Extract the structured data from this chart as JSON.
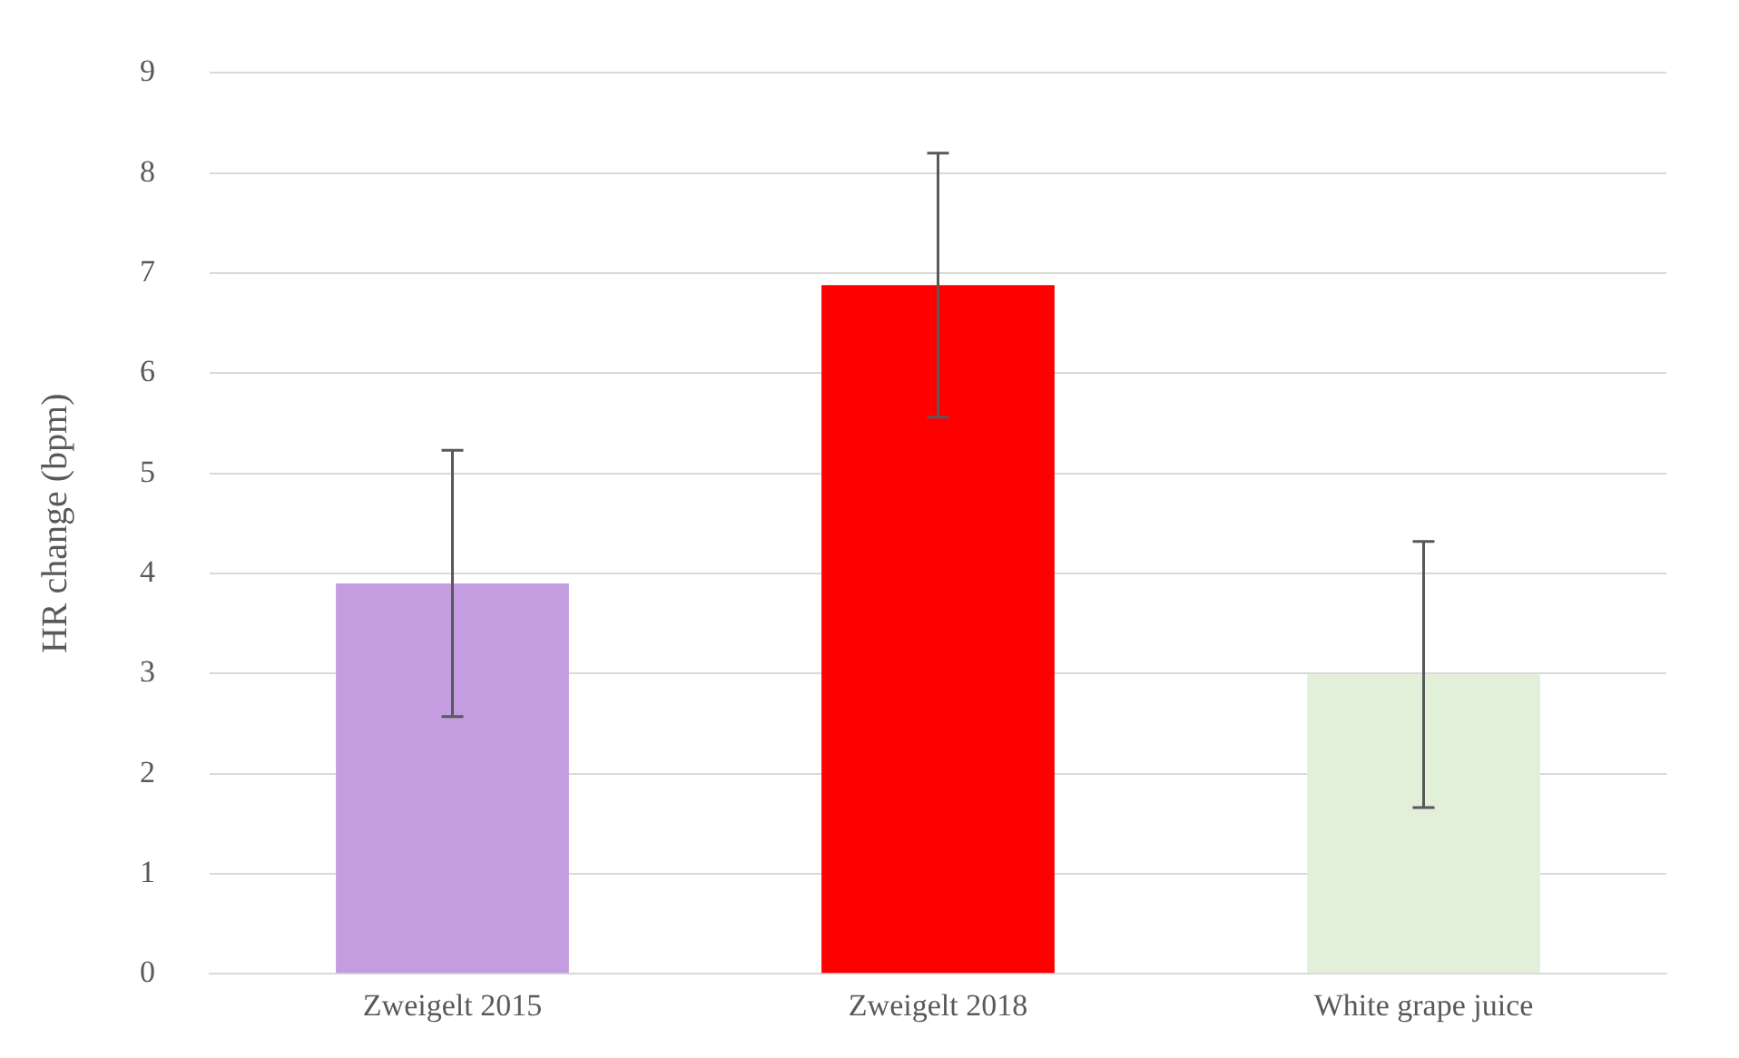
{
  "chart_data": {
    "type": "bar",
    "ylabel": "HR change (bpm)",
    "categories": [
      "Zweigelt 2015",
      "Zweigelt 2018",
      "White grape juice"
    ],
    "values": [
      3.9,
      6.88,
      2.99
    ],
    "colors": [
      "#c39ddf",
      "#ff0000",
      "#e2efd9"
    ],
    "errors": [
      1.33,
      1.32,
      1.33
    ],
    "ylim": [
      0,
      9
    ],
    "yticks": [
      0,
      1,
      2,
      3,
      4,
      5,
      6,
      7,
      8,
      9
    ],
    "grid": "y"
  }
}
